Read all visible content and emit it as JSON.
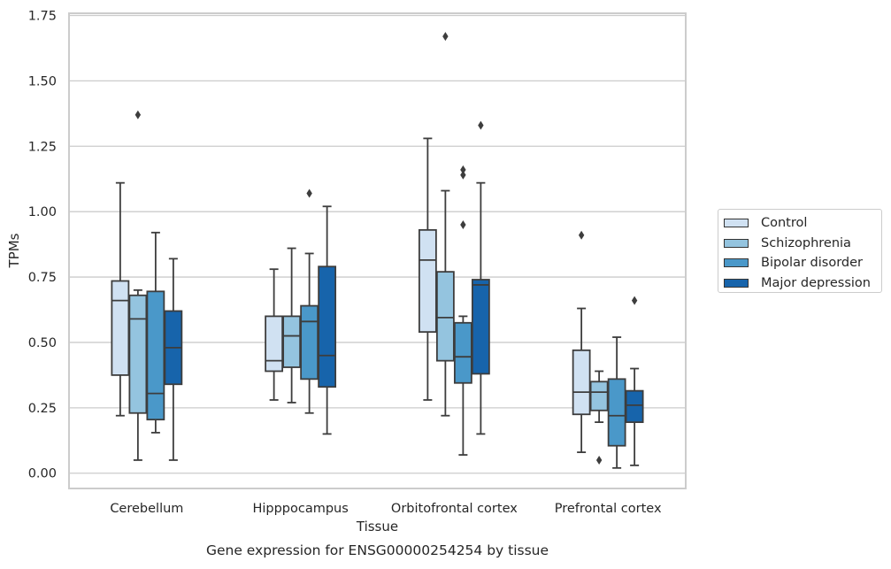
{
  "chart_data": {
    "type": "box",
    "xlabel": "Tissue",
    "ylabel": "TPMs",
    "caption": "Gene expression for ENSG00000254254 by tissue",
    "ylim": [
      -0.055,
      1.755
    ],
    "yticks": [
      "0.00",
      "0.25",
      "0.50",
      "0.75",
      "1.00",
      "1.25",
      "1.50",
      "1.75"
    ],
    "grid": "horizontal",
    "legend_position": "right",
    "categories": [
      "Cerebellum",
      "Hipppocampus",
      "Orbitofrontal cortex",
      "Prefrontal cortex"
    ],
    "series": [
      {
        "name": "Control",
        "color": "#d0e1f2",
        "boxes": [
          {
            "whislo": 0.22,
            "q1": 0.375,
            "med": 0.66,
            "q3": 0.735,
            "whishi": 1.11,
            "fliers": []
          },
          {
            "whislo": 0.28,
            "q1": 0.39,
            "med": 0.43,
            "q3": 0.6,
            "whishi": 0.78,
            "fliers": []
          },
          {
            "whislo": 0.28,
            "q1": 0.54,
            "med": 0.815,
            "q3": 0.93,
            "whishi": 1.28,
            "fliers": []
          },
          {
            "whislo": 0.08,
            "q1": 0.225,
            "med": 0.31,
            "q3": 0.47,
            "whishi": 0.63,
            "fliers": [
              0.91
            ]
          }
        ]
      },
      {
        "name": "Schizophrenia",
        "color": "#94c4df",
        "boxes": [
          {
            "whislo": 0.05,
            "q1": 0.23,
            "med": 0.59,
            "q3": 0.68,
            "whishi": 0.7,
            "fliers": [
              1.37
            ]
          },
          {
            "whislo": 0.27,
            "q1": 0.405,
            "med": 0.525,
            "q3": 0.6,
            "whishi": 0.86,
            "fliers": []
          },
          {
            "whislo": 0.22,
            "q1": 0.43,
            "med": 0.595,
            "q3": 0.77,
            "whishi": 1.08,
            "fliers": [
              1.67
            ]
          },
          {
            "whislo": 0.195,
            "q1": 0.24,
            "med": 0.31,
            "q3": 0.35,
            "whishi": 0.39,
            "fliers": [
              0.05
            ]
          }
        ]
      },
      {
        "name": "Bipolar disorder",
        "color": "#4a98c9",
        "boxes": [
          {
            "whislo": 0.155,
            "q1": 0.205,
            "med": 0.305,
            "q3": 0.695,
            "whishi": 0.92,
            "fliers": []
          },
          {
            "whislo": 0.23,
            "q1": 0.36,
            "med": 0.58,
            "q3": 0.64,
            "whishi": 0.84,
            "fliers": [
              1.07
            ]
          },
          {
            "whislo": 0.07,
            "q1": 0.345,
            "med": 0.445,
            "q3": 0.575,
            "whishi": 0.6,
            "fliers": [
              0.95,
              1.14,
              1.16
            ]
          },
          {
            "whislo": 0.02,
            "q1": 0.105,
            "med": 0.22,
            "q3": 0.36,
            "whishi": 0.52,
            "fliers": []
          }
        ]
      },
      {
        "name": "Major depression",
        "color": "#1764ab",
        "boxes": [
          {
            "whislo": 0.05,
            "q1": 0.34,
            "med": 0.48,
            "q3": 0.62,
            "whishi": 0.82,
            "fliers": []
          },
          {
            "whislo": 0.15,
            "q1": 0.33,
            "med": 0.45,
            "q3": 0.79,
            "whishi": 1.02,
            "fliers": []
          },
          {
            "whislo": 0.15,
            "q1": 0.38,
            "med": 0.72,
            "q3": 0.74,
            "whishi": 1.11,
            "fliers": [
              1.33
            ]
          },
          {
            "whislo": 0.03,
            "q1": 0.195,
            "med": 0.26,
            "q3": 0.315,
            "whishi": 0.4,
            "fliers": [
              0.66
            ]
          }
        ]
      }
    ]
  }
}
